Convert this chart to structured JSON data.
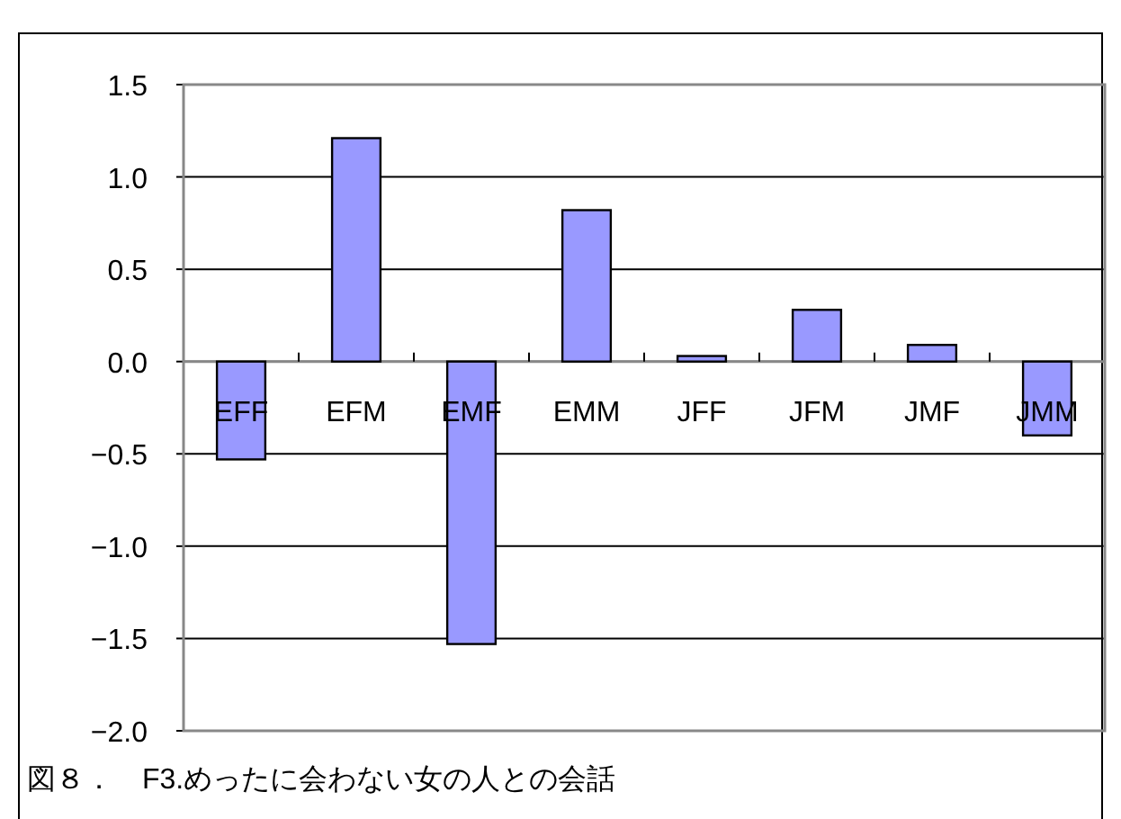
{
  "chart_data": {
    "type": "bar",
    "title": "図８．　F3.めったに会わない女の人との会話",
    "categories": [
      "EFF",
      "EFM",
      "EMF",
      "EMM",
      "JFF",
      "JFM",
      "JMF",
      "JMM"
    ],
    "values": [
      -0.53,
      1.21,
      -1.53,
      0.82,
      0.03,
      0.28,
      0.09,
      -0.4
    ],
    "color": "#9999ff",
    "ylim": [
      -2,
      1.5
    ],
    "yticks": [
      {
        "value": 1.5,
        "label": "1.5"
      },
      {
        "value": 1,
        "label": "1.0"
      },
      {
        "value": 0.5,
        "label": "0.5"
      },
      {
        "value": 0,
        "label": "0.0"
      },
      {
        "value": -0.5,
        "label": "−0.5"
      },
      {
        "value": -1,
        "label": "−1.0"
      },
      {
        "value": -1.5,
        "label": "−1.5"
      },
      {
        "value": -2,
        "label": "−2.0"
      }
    ],
    "grid": "y"
  }
}
